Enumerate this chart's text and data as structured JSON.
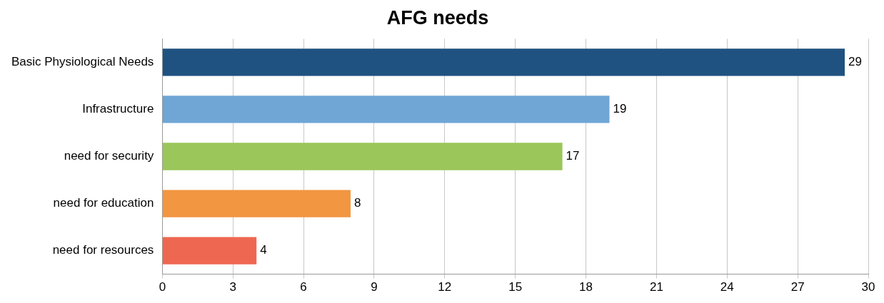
{
  "chart_data": {
    "type": "bar",
    "orientation": "horizontal",
    "title": "AFG needs",
    "categories": [
      "Basic Physiological Needs",
      "Infrastructure",
      "need for security",
      "need for education",
      "need for resources"
    ],
    "values": [
      29,
      19,
      17,
      8,
      4
    ],
    "colors": [
      "#1f5280",
      "#6fa6d5",
      "#9bc65a",
      "#f29641",
      "#ee6751"
    ],
    "xlim": [
      0,
      30
    ],
    "xticks": [
      0,
      3,
      6,
      9,
      12,
      15,
      18,
      21,
      24,
      27,
      30
    ],
    "grid": "x",
    "data_labels": true,
    "legend": false
  }
}
